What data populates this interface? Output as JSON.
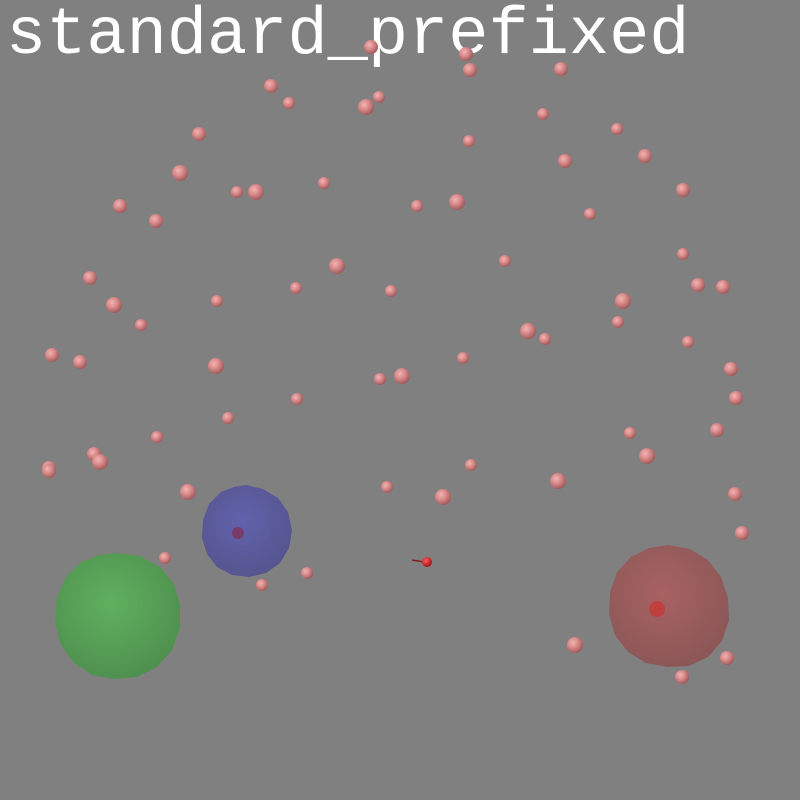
{
  "scene": {
    "title": "standard_prefixed",
    "background": "#808080",
    "zones": [
      {
        "name": "green-goal-zone",
        "color": "#58a558"
      },
      {
        "name": "blue-goal-zone",
        "color": "#5a5aa2"
      },
      {
        "name": "red-goal-zone",
        "color": "#a05a5a"
      }
    ],
    "food_color": "#d98a8a",
    "agent_color": "#c02020"
  }
}
